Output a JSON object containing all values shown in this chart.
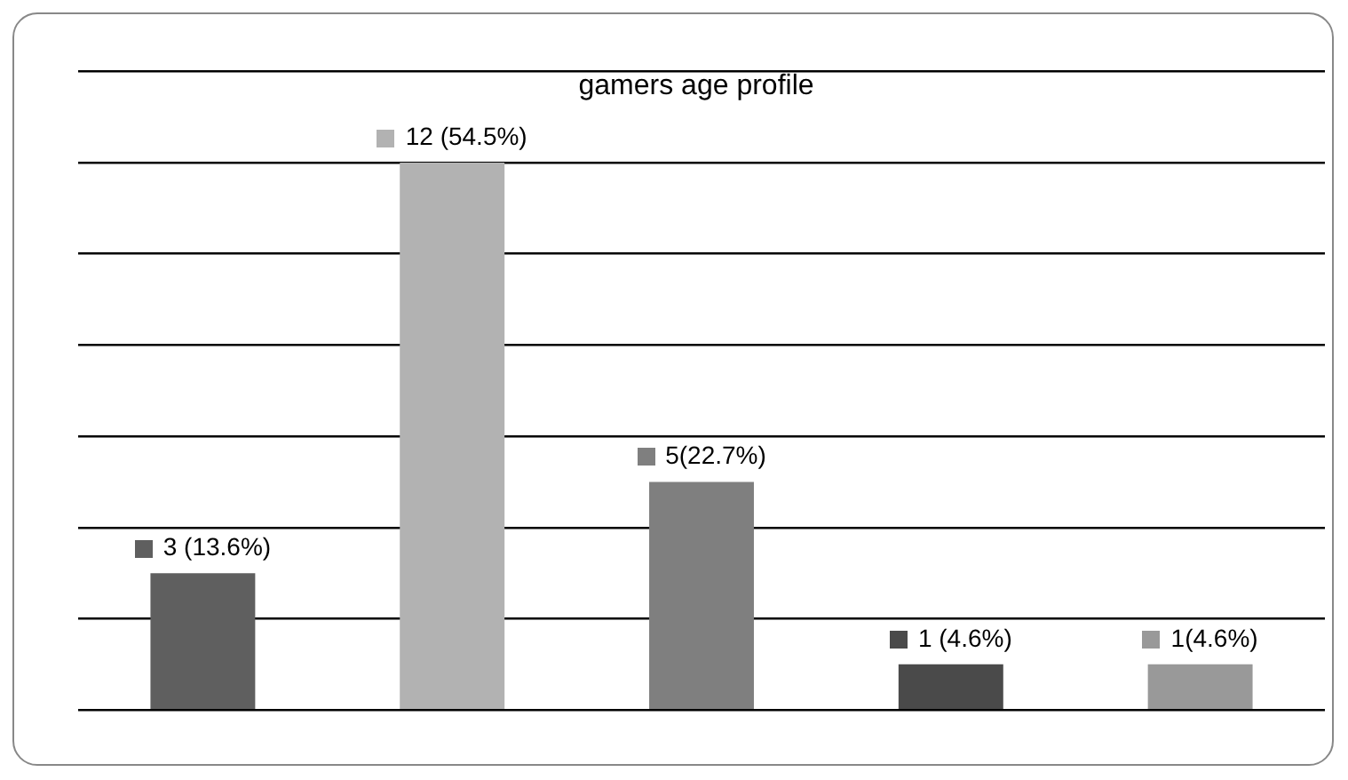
{
  "chart_data": {
    "type": "bar",
    "title": "gamers age profile",
    "categories": [
      null,
      null,
      null,
      null,
      null
    ],
    "values": [
      3,
      12,
      5,
      1,
      1
    ],
    "colors": [
      "#5f5f5f",
      "#b2b2b2",
      "#7f7f7f",
      "#4a4a4a",
      "#999999"
    ],
    "value_labels": [
      "3 (13.6%)",
      "12 (54.5%)",
      "5(22.7%)",
      "1 (4.6%)",
      "1(4.6%)"
    ],
    "ylim": [
      0,
      14
    ],
    "yticks": [
      {
        "value": 0,
        "label": null
      },
      {
        "value": 2,
        "label": null
      },
      {
        "value": 4,
        "label": null
      },
      {
        "value": 6,
        "label": null
      },
      {
        "value": 8,
        "label": null
      },
      {
        "value": 10,
        "label": null
      },
      {
        "value": 12,
        "label": null
      },
      {
        "value": 14,
        "label": null
      }
    ],
    "grid": "y",
    "legend": false
  }
}
